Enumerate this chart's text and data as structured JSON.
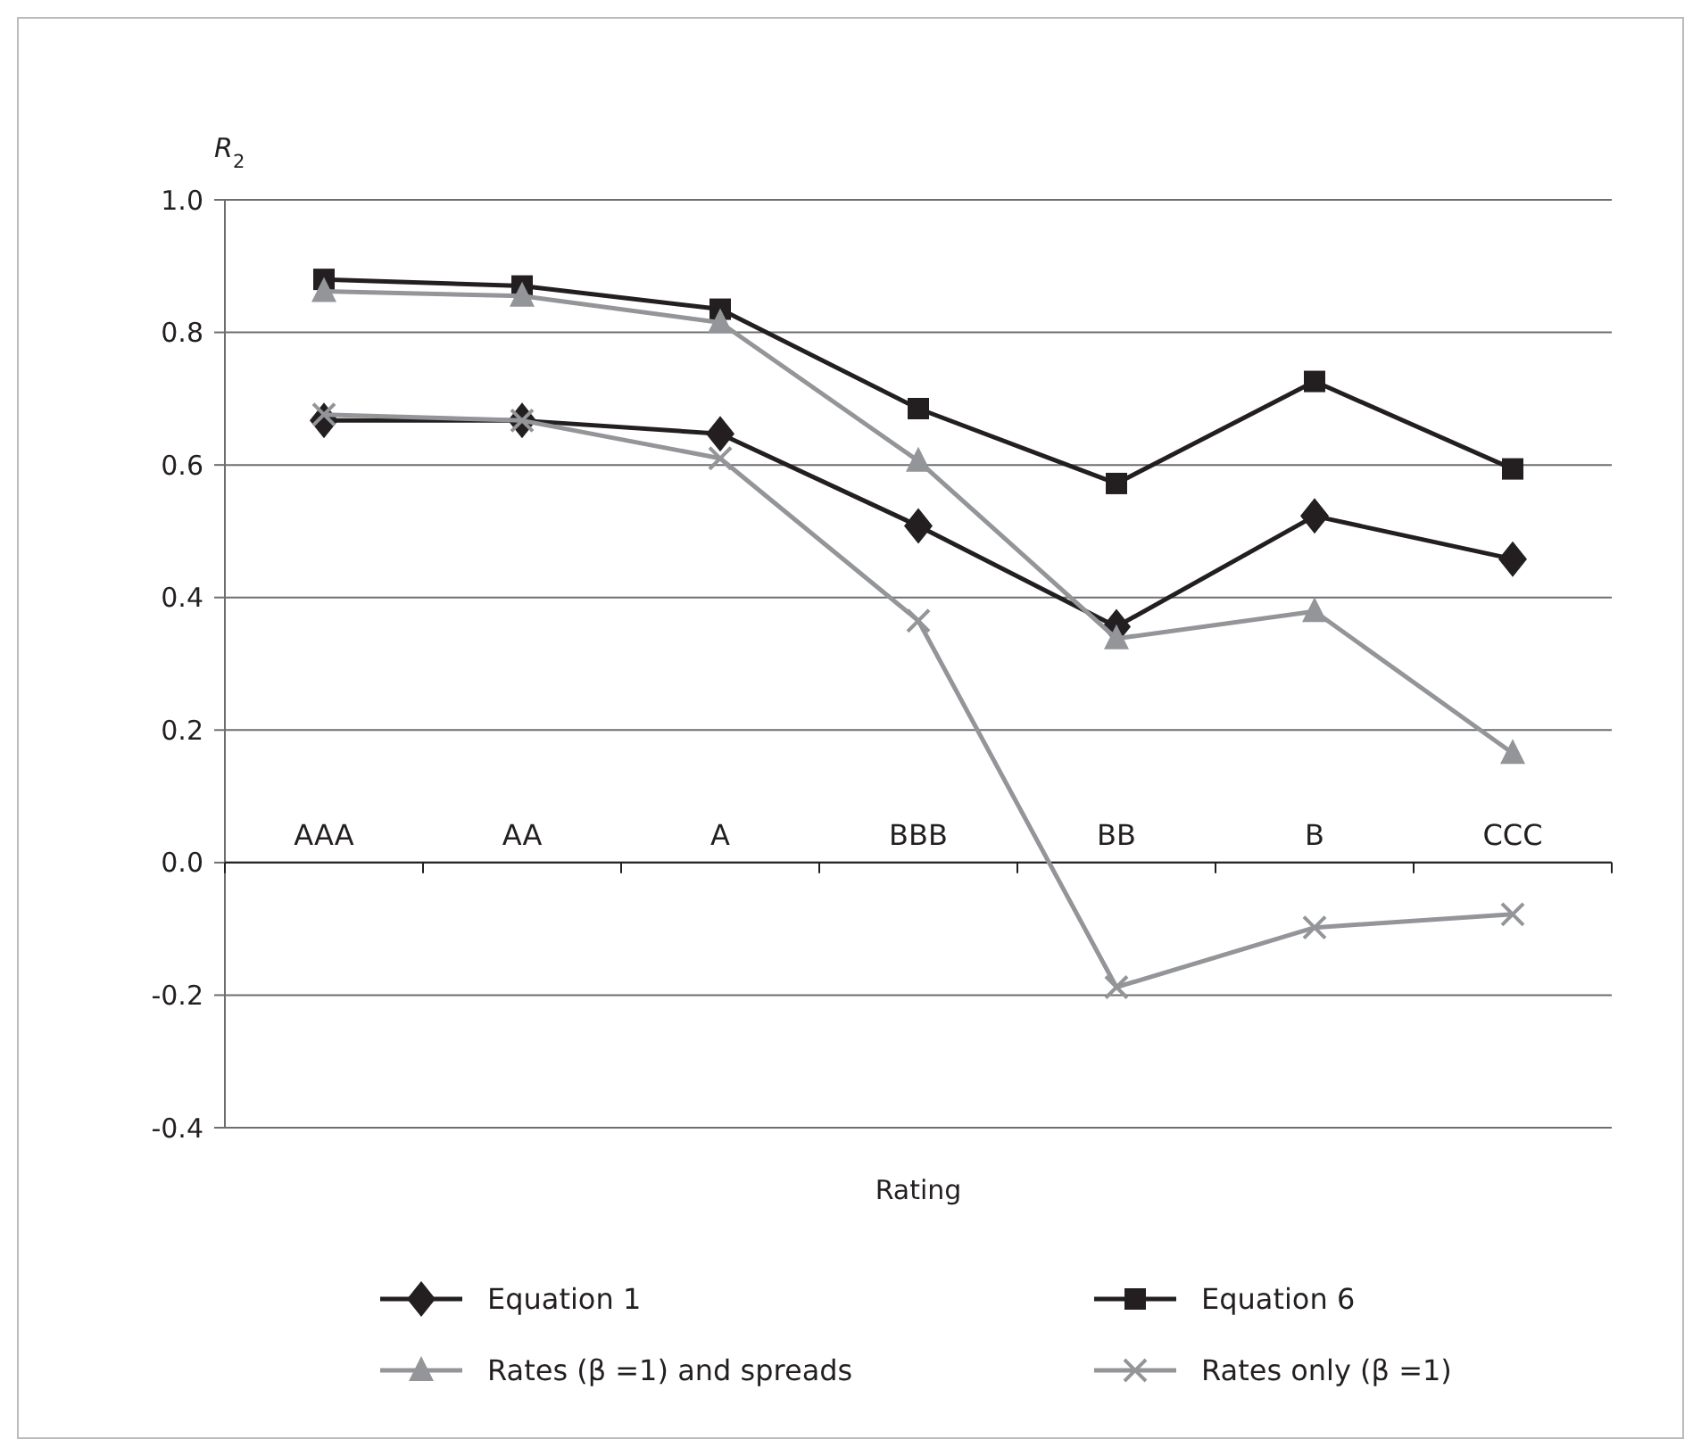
{
  "chart_data": {
    "type": "line",
    "ylabel": "R$_{2}$",
    "xlabel": "Rating",
    "categories": [
      "AAA",
      "AA",
      "A",
      "BBB",
      "BB",
      "B",
      "CCC"
    ],
    "series": [
      {
        "name": "Equation 1",
        "color": "#231f20",
        "marker": "diamond",
        "values": [
          0.667,
          0.667,
          0.647,
          0.508,
          0.356,
          0.523,
          0.458
        ]
      },
      {
        "name": "Equation 6",
        "color": "#231f20",
        "marker": "square",
        "values": [
          0.88,
          0.87,
          0.835,
          0.685,
          0.572,
          0.726,
          0.594
        ]
      },
      {
        "name": "Rates (β =1) and spreads",
        "color": "#939598",
        "marker": "triangle",
        "values": [
          0.862,
          0.855,
          0.815,
          0.606,
          0.338,
          0.379,
          0.165
        ]
      },
      {
        "name": "Rates only (β =1)",
        "color": "#939598",
        "marker": "cross",
        "values": [
          0.676,
          0.667,
          0.61,
          0.365,
          -0.188,
          -0.098,
          -0.078
        ]
      }
    ],
    "ylim": [
      -0.4,
      1.0
    ],
    "yticks": [
      {
        "value": -0.4,
        "label": "-0.4"
      },
      {
        "value": -0.2,
        "label": "-0.2"
      },
      {
        "value": 0,
        "label": "0.0"
      },
      {
        "value": 0.2,
        "label": "0.2"
      },
      {
        "value": 0.4,
        "label": "0.4"
      },
      {
        "value": 0.6,
        "label": "0.6"
      },
      {
        "value": 0.8,
        "label": "0.8"
      },
      {
        "value": 1.0,
        "label": "1.0"
      }
    ],
    "grid": "y",
    "legend": "bottom"
  }
}
